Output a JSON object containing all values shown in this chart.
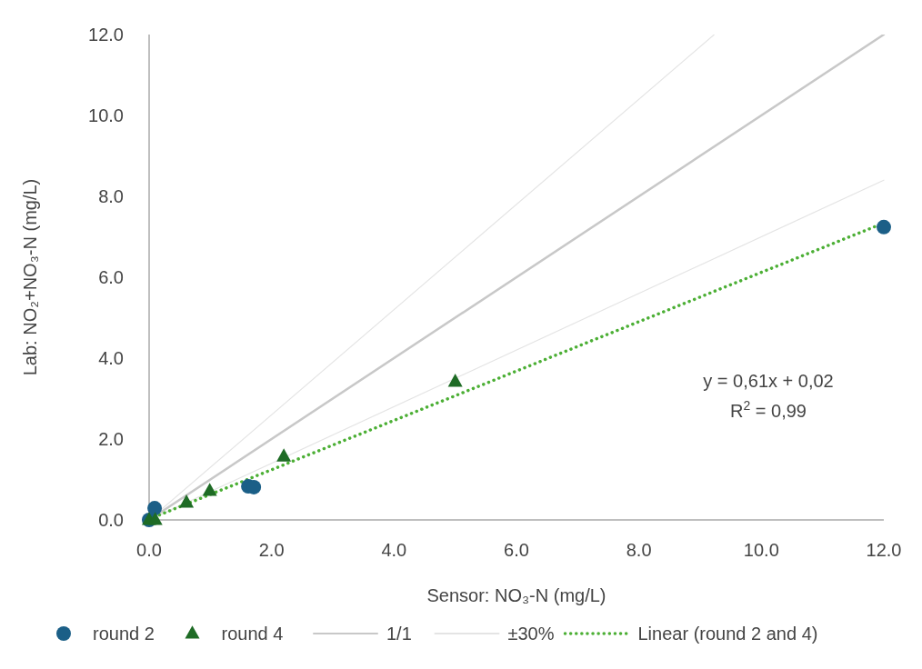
{
  "chart_data": {
    "type": "scatter",
    "xlabel": "Sensor: NO₃-N (mg/L)",
    "ylabel": "Lab: NO₂+NO₃-N (mg/L)",
    "xlim": [
      0,
      12
    ],
    "ylim": [
      0,
      12
    ],
    "xticks": [
      {
        "value": 0,
        "label": "0.0"
      },
      {
        "value": 2,
        "label": "2.0"
      },
      {
        "value": 4,
        "label": "4.0"
      },
      {
        "value": 6,
        "label": "6.0"
      },
      {
        "value": 8,
        "label": "8.0"
      },
      {
        "value": 10,
        "label": "10.0"
      },
      {
        "value": 12,
        "label": "12.0"
      }
    ],
    "yticks": [
      {
        "value": 0,
        "label": "0.0"
      },
      {
        "value": 2,
        "label": "2.0"
      },
      {
        "value": 4,
        "label": "4.0"
      },
      {
        "value": 6,
        "label": "6.0"
      },
      {
        "value": 8,
        "label": "8.0"
      },
      {
        "value": 10,
        "label": "10.0"
      },
      {
        "value": 12,
        "label": "12.0"
      }
    ],
    "grid": false,
    "legend": "bottom",
    "annotations": [
      "y = 0,61x + 0,02",
      "R$^{2}$ = 0,99"
    ],
    "series": [
      {
        "name": "round 2",
        "marker": "circle",
        "color": "#1b5f87",
        "x": [
          0.0,
          0.09,
          1.62,
          1.71,
          12.0
        ],
        "values": [
          0.0,
          0.29,
          0.83,
          0.81,
          7.24
        ]
      },
      {
        "name": "round 4",
        "marker": "triangle",
        "color": "#1e6b25",
        "x": [
          0.0,
          0.1,
          0.61,
          0.99,
          2.2,
          5.0
        ],
        "values": [
          0.0,
          0.0,
          0.43,
          0.72,
          1.57,
          3.42
        ]
      },
      {
        "name": "1/1",
        "type": "line",
        "line_style": "solid",
        "color": "#c8c8c8",
        "x": [
          0,
          12
        ],
        "values": [
          0,
          12
        ]
      },
      {
        "name": "±30%",
        "type": "line",
        "line_style": "solid",
        "color": "#e4e4e4",
        "x": [
          0,
          9.23
        ],
        "values": [
          0,
          12
        ]
      },
      {
        "type": "line",
        "line_style": "solid",
        "color": "#e4e4e4",
        "x": [
          0,
          12
        ],
        "values": [
          0,
          8.4
        ]
      },
      {
        "name": "Linear (round 2 and 4)",
        "type": "line",
        "line_style": "dotted",
        "color": "#4caf35",
        "x": [
          0,
          12
        ],
        "values": [
          0.02,
          7.34
        ]
      }
    ]
  }
}
